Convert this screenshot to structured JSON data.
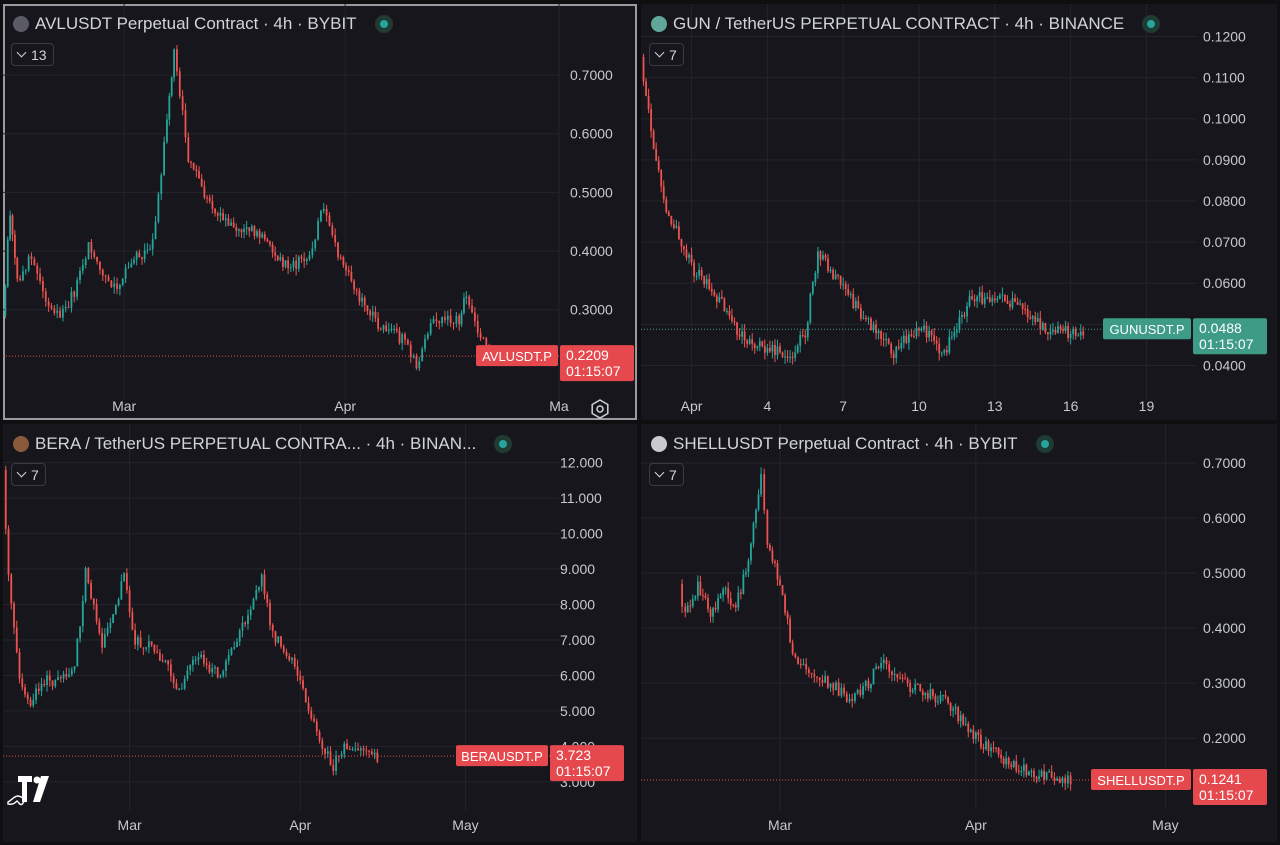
{
  "panels": [
    {
      "id": "avl",
      "title": "AVLUSDT Perpetual Contract · 4h · BYBIT",
      "indicator_count": "13",
      "coin_color": "#5b5b66",
      "ticker": "AVLUSDT.P",
      "price": "0.2209",
      "countdown": "01:15:07",
      "status_color": "#e5484d",
      "y_ticks": [
        "0.7000",
        "0.6000",
        "0.5000",
        "0.4000",
        "0.3000"
      ],
      "x_ticks": [
        "Mar",
        "Apr",
        "Ma"
      ],
      "chart_data": {
        "type": "candlestick",
        "x_range": [
          "2025-02-12",
          "2025-05-01"
        ],
        "ylim": [
          0.17,
          0.77
        ],
        "last_price": 0.2209,
        "close_path": [
          {
            "date": "2025-02-12",
            "value": 0.29
          },
          {
            "date": "2025-02-13",
            "value": 0.47
          },
          {
            "date": "2025-02-14",
            "value": 0.35
          },
          {
            "date": "2025-02-16",
            "value": 0.39
          },
          {
            "date": "2025-02-18",
            "value": 0.31
          },
          {
            "date": "2025-02-20",
            "value": 0.29
          },
          {
            "date": "2025-02-22",
            "value": 0.33
          },
          {
            "date": "2025-02-24",
            "value": 0.41
          },
          {
            "date": "2025-02-26",
            "value": 0.36
          },
          {
            "date": "2025-02-28",
            "value": 0.34
          },
          {
            "date": "2025-03-02",
            "value": 0.38
          },
          {
            "date": "2025-03-05",
            "value": 0.41
          },
          {
            "date": "2025-03-07",
            "value": 0.62
          },
          {
            "date": "2025-03-08",
            "value": 0.74
          },
          {
            "date": "2025-03-10",
            "value": 0.56
          },
          {
            "date": "2025-03-13",
            "value": 0.48
          },
          {
            "date": "2025-03-16",
            "value": 0.44
          },
          {
            "date": "2025-03-20",
            "value": 0.43
          },
          {
            "date": "2025-03-24",
            "value": 0.37
          },
          {
            "date": "2025-03-27",
            "value": 0.39
          },
          {
            "date": "2025-03-29",
            "value": 0.48
          },
          {
            "date": "2025-03-31",
            "value": 0.4
          },
          {
            "date": "2025-04-03",
            "value": 0.32
          },
          {
            "date": "2025-04-06",
            "value": 0.27
          },
          {
            "date": "2025-04-09",
            "value": 0.25
          },
          {
            "date": "2025-04-11",
            "value": 0.205
          },
          {
            "date": "2025-04-13",
            "value": 0.27
          },
          {
            "date": "2025-04-15",
            "value": 0.29
          },
          {
            "date": "2025-04-17",
            "value": 0.28
          },
          {
            "date": "2025-04-18",
            "value": 0.33
          },
          {
            "date": "2025-04-20",
            "value": 0.25
          },
          {
            "date": "2025-04-22",
            "value": 0.221
          }
        ]
      }
    },
    {
      "id": "gun",
      "title": "GUN / TetherUS PERPETUAL CONTRACT · 4h · BINANCE",
      "indicator_count": "7",
      "coin_color": "#5fa89a",
      "ticker": "GUNUSDT.P",
      "price": "0.0488",
      "countdown": "01:15:07",
      "status_color": "#3d9b86",
      "y_ticks": [
        "0.1200",
        "0.1100",
        "0.1000",
        "0.0900",
        "0.0800",
        "0.0700",
        "0.0600",
        "0.0500",
        "0.0400"
      ],
      "x_ticks": [
        "Apr",
        "4",
        "7",
        "10",
        "13",
        "16",
        "19"
      ],
      "chart_data": {
        "type": "candlestick",
        "x_range": [
          "2025-03-30",
          "2025-04-21"
        ],
        "ylim": [
          0.035,
          0.124
        ],
        "last_price": 0.0488,
        "close_path": [
          {
            "date": "2025-03-30",
            "value": 0.115
          },
          {
            "date": "2025-03-30T12:00",
            "value": 0.093
          },
          {
            "date": "2025-03-31",
            "value": 0.078
          },
          {
            "date": "2025-04-01",
            "value": 0.064
          },
          {
            "date": "2025-04-02",
            "value": 0.057
          },
          {
            "date": "2025-04-03",
            "value": 0.047
          },
          {
            "date": "2025-04-04",
            "value": 0.044
          },
          {
            "date": "2025-04-05",
            "value": 0.043
          },
          {
            "date": "2025-04-05T12:00",
            "value": 0.048
          },
          {
            "date": "2025-04-06",
            "value": 0.068
          },
          {
            "date": "2025-04-07",
            "value": 0.059
          },
          {
            "date": "2025-04-08",
            "value": 0.05
          },
          {
            "date": "2025-04-09",
            "value": 0.043
          },
          {
            "date": "2025-04-10",
            "value": 0.05
          },
          {
            "date": "2025-04-11",
            "value": 0.043
          },
          {
            "date": "2025-04-12",
            "value": 0.056
          },
          {
            "date": "2025-04-13",
            "value": 0.057
          },
          {
            "date": "2025-04-14",
            "value": 0.054
          },
          {
            "date": "2025-04-15",
            "value": 0.049
          },
          {
            "date": "2025-04-16",
            "value": 0.0478
          },
          {
            "date": "2025-04-16T12:00",
            "value": 0.0488
          }
        ]
      }
    },
    {
      "id": "bera",
      "title": "BERA / TetherUS PERPETUAL CONTRA... · 4h · BINAN...",
      "indicator_count": "7",
      "coin_color": "#8a5a3c",
      "ticker": "BERAUSDT.P",
      "price": "3.723",
      "countdown": "01:15:07",
      "status_color": "#e5484d",
      "y_ticks": [
        "12.000",
        "11.000",
        "10.000",
        "9.000",
        "8.000",
        "7.000",
        "6.000",
        "5.000",
        "4.000",
        "3.000"
      ],
      "x_ticks": [
        "Mar",
        "Apr",
        "May"
      ],
      "chart_data": {
        "type": "candlestick",
        "x_range": [
          "2025-02-06",
          "2025-05-18"
        ],
        "ylim": [
          2.6,
          12.3
        ],
        "last_price": 3.723,
        "close_path": [
          {
            "date": "2025-02-06",
            "value": 11.8
          },
          {
            "date": "2025-02-07",
            "value": 8.8
          },
          {
            "date": "2025-02-09",
            "value": 6.0
          },
          {
            "date": "2025-02-11",
            "value": 5.1
          },
          {
            "date": "2025-02-13",
            "value": 5.9
          },
          {
            "date": "2025-02-16",
            "value": 5.8
          },
          {
            "date": "2025-02-19",
            "value": 6.2
          },
          {
            "date": "2025-02-21",
            "value": 8.9
          },
          {
            "date": "2025-02-24",
            "value": 6.8
          },
          {
            "date": "2025-02-26",
            "value": 7.8
          },
          {
            "date": "2025-02-28",
            "value": 8.8
          },
          {
            "date": "2025-03-02",
            "value": 7.0
          },
          {
            "date": "2025-03-05",
            "value": 6.8
          },
          {
            "date": "2025-03-08",
            "value": 6.3
          },
          {
            "date": "2025-03-10",
            "value": 5.5
          },
          {
            "date": "2025-03-13",
            "value": 6.6
          },
          {
            "date": "2025-03-17",
            "value": 6.0
          },
          {
            "date": "2025-03-20",
            "value": 6.8
          },
          {
            "date": "2025-03-23",
            "value": 7.9
          },
          {
            "date": "2025-03-25",
            "value": 8.8
          },
          {
            "date": "2025-03-27",
            "value": 7.1
          },
          {
            "date": "2025-03-30",
            "value": 6.6
          },
          {
            "date": "2025-04-02",
            "value": 5.3
          },
          {
            "date": "2025-04-05",
            "value": 4.0
          },
          {
            "date": "2025-04-07",
            "value": 3.4
          },
          {
            "date": "2025-04-09",
            "value": 4.1
          },
          {
            "date": "2025-04-12",
            "value": 3.8
          },
          {
            "date": "2025-04-15",
            "value": 3.72
          }
        ]
      }
    },
    {
      "id": "shell",
      "title": "SHELLUSDT Perpetual Contract · 4h · BYBIT",
      "indicator_count": "7",
      "coin_color": "#c9c9d0",
      "ticker": "SHELLUSDT.P",
      "price": "0.1241",
      "countdown": "01:15:07",
      "status_color": "#e5484d",
      "y_ticks": [
        "0.7000",
        "0.6000",
        "0.5000",
        "0.4000",
        "0.3000",
        "0.2000"
      ],
      "x_ticks": [
        "Mar",
        "Apr",
        "May"
      ],
      "chart_data": {
        "type": "candlestick",
        "x_range": [
          "2025-02-07",
          "2025-05-06"
        ],
        "ylim": [
          0.095,
          0.72
        ],
        "last_price": 0.1241,
        "close_path": [
          {
            "date": "2025-02-13",
            "value": 0.48
          },
          {
            "date": "2025-02-14",
            "value": 0.42
          },
          {
            "date": "2025-02-16",
            "value": 0.48
          },
          {
            "date": "2025-02-18",
            "value": 0.42
          },
          {
            "date": "2025-02-20",
            "value": 0.47
          },
          {
            "date": "2025-02-22",
            "value": 0.44
          },
          {
            "date": "2025-02-24",
            "value": 0.52
          },
          {
            "date": "2025-02-26",
            "value": 0.67
          },
          {
            "date": "2025-02-27",
            "value": 0.55
          },
          {
            "date": "2025-03-01",
            "value": 0.48
          },
          {
            "date": "2025-03-03",
            "value": 0.36
          },
          {
            "date": "2025-03-06",
            "value": 0.31
          },
          {
            "date": "2025-03-09",
            "value": 0.3
          },
          {
            "date": "2025-03-12",
            "value": 0.27
          },
          {
            "date": "2025-03-15",
            "value": 0.3
          },
          {
            "date": "2025-03-17",
            "value": 0.34
          },
          {
            "date": "2025-03-20",
            "value": 0.3
          },
          {
            "date": "2025-03-24",
            "value": 0.285
          },
          {
            "date": "2025-03-28",
            "value": 0.26
          },
          {
            "date": "2025-04-01",
            "value": 0.2
          },
          {
            "date": "2025-04-05",
            "value": 0.165
          },
          {
            "date": "2025-04-09",
            "value": 0.14
          },
          {
            "date": "2025-04-13",
            "value": 0.13
          },
          {
            "date": "2025-04-16",
            "value": 0.1241
          }
        ]
      }
    }
  ],
  "colors": {
    "up": "#26a69a",
    "down": "#ef5350",
    "grid": "#24242c",
    "axis_text": "#c7c9d0"
  }
}
